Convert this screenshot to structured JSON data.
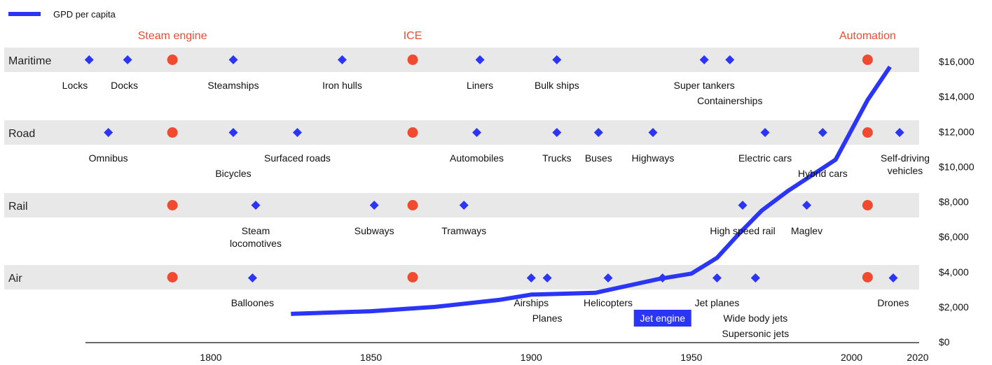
{
  "legend": {
    "label": "GPD per capita"
  },
  "colors": {
    "gdp_line": "#2b35f5",
    "diamond": "#2b35f5",
    "era_dot": "#f04b30",
    "era_text": "#f04b30",
    "band": "#e8e8e8",
    "highlight_bg": "#2b35f5"
  },
  "chart_data": {
    "type": "line",
    "x_ticks": [
      1800,
      1850,
      1900,
      1950,
      2000,
      2020
    ],
    "y_ticks": [
      "$0",
      "$2,000",
      "$4,000",
      "$6,000",
      "$8,000",
      "$10,000",
      "$12,000",
      "$14,000",
      "$16,000"
    ],
    "y_range": [
      0,
      16000
    ],
    "series": [
      {
        "name": "GPD per capita",
        "x": [
          1825,
          1850,
          1870,
          1890,
          1900,
          1920,
          1940,
          1950,
          1958,
          1965,
          1972,
          1980,
          1995,
          2005,
          2012
        ],
        "y": [
          1600,
          1750,
          2000,
          2400,
          2700,
          2800,
          3600,
          3900,
          4800,
          6200,
          7500,
          8600,
          10400,
          13800,
          15700
        ]
      }
    ],
    "eras": [
      {
        "label": "Steam engine",
        "year": 1788
      },
      {
        "label": "ICE",
        "year": 1863
      },
      {
        "label": "Automation",
        "year": 2005
      }
    ],
    "lanes": [
      {
        "name": "Maritime",
        "events": [
          {
            "label": "Locks",
            "year": 1762
          },
          {
            "label": "Docks",
            "year": 1774
          },
          {
            "label": "Steamships",
            "year": 1807
          },
          {
            "label": "Iron hulls",
            "year": 1841
          },
          {
            "label": "Liners",
            "year": 1884
          },
          {
            "label": "Bulk ships",
            "year": 1908
          },
          {
            "label": "Super tankers",
            "year": 1954
          },
          {
            "label": "Containerships",
            "year": 1962
          }
        ]
      },
      {
        "name": "Road",
        "events": [
          {
            "label": "Omnibus",
            "year": 1768
          },
          {
            "label": "Bicycles",
            "year": 1807
          },
          {
            "label": "Surfaced roads",
            "year": 1827
          },
          {
            "label": "Automobiles",
            "year": 1883
          },
          {
            "label": "Trucks",
            "year": 1908
          },
          {
            "label": "Buses",
            "year": 1921
          },
          {
            "label": "Highways",
            "year": 1938
          },
          {
            "label": "Electric cars",
            "year": 1973
          },
          {
            "label": "Hybrid cars",
            "year": 1991
          },
          {
            "label": "Self-driving vehicles",
            "year": 2015
          }
        ]
      },
      {
        "name": "Rail",
        "events": [
          {
            "label": "Steam locomotives",
            "year": 1814
          },
          {
            "label": "Subways",
            "year": 1851
          },
          {
            "label": "Tramways",
            "year": 1879
          },
          {
            "label": "High speed rail",
            "year": 1966
          },
          {
            "label": "Maglev",
            "year": 1986
          }
        ]
      },
      {
        "name": "Air",
        "events": [
          {
            "label": "Balloones",
            "year": 1813
          },
          {
            "label": "Airships",
            "year": 1900
          },
          {
            "label": "Planes",
            "year": 1905
          },
          {
            "label": "Helicopters",
            "year": 1924
          },
          {
            "label": "Jet engine",
            "year": 1941
          },
          {
            "label": "Jet planes",
            "year": 1958
          },
          {
            "label": "Wide body jets",
            "year": 1970
          },
          {
            "label": "Supersonic jets",
            "year": 1970
          },
          {
            "label": "Drones",
            "year": 2013
          }
        ]
      }
    ]
  }
}
